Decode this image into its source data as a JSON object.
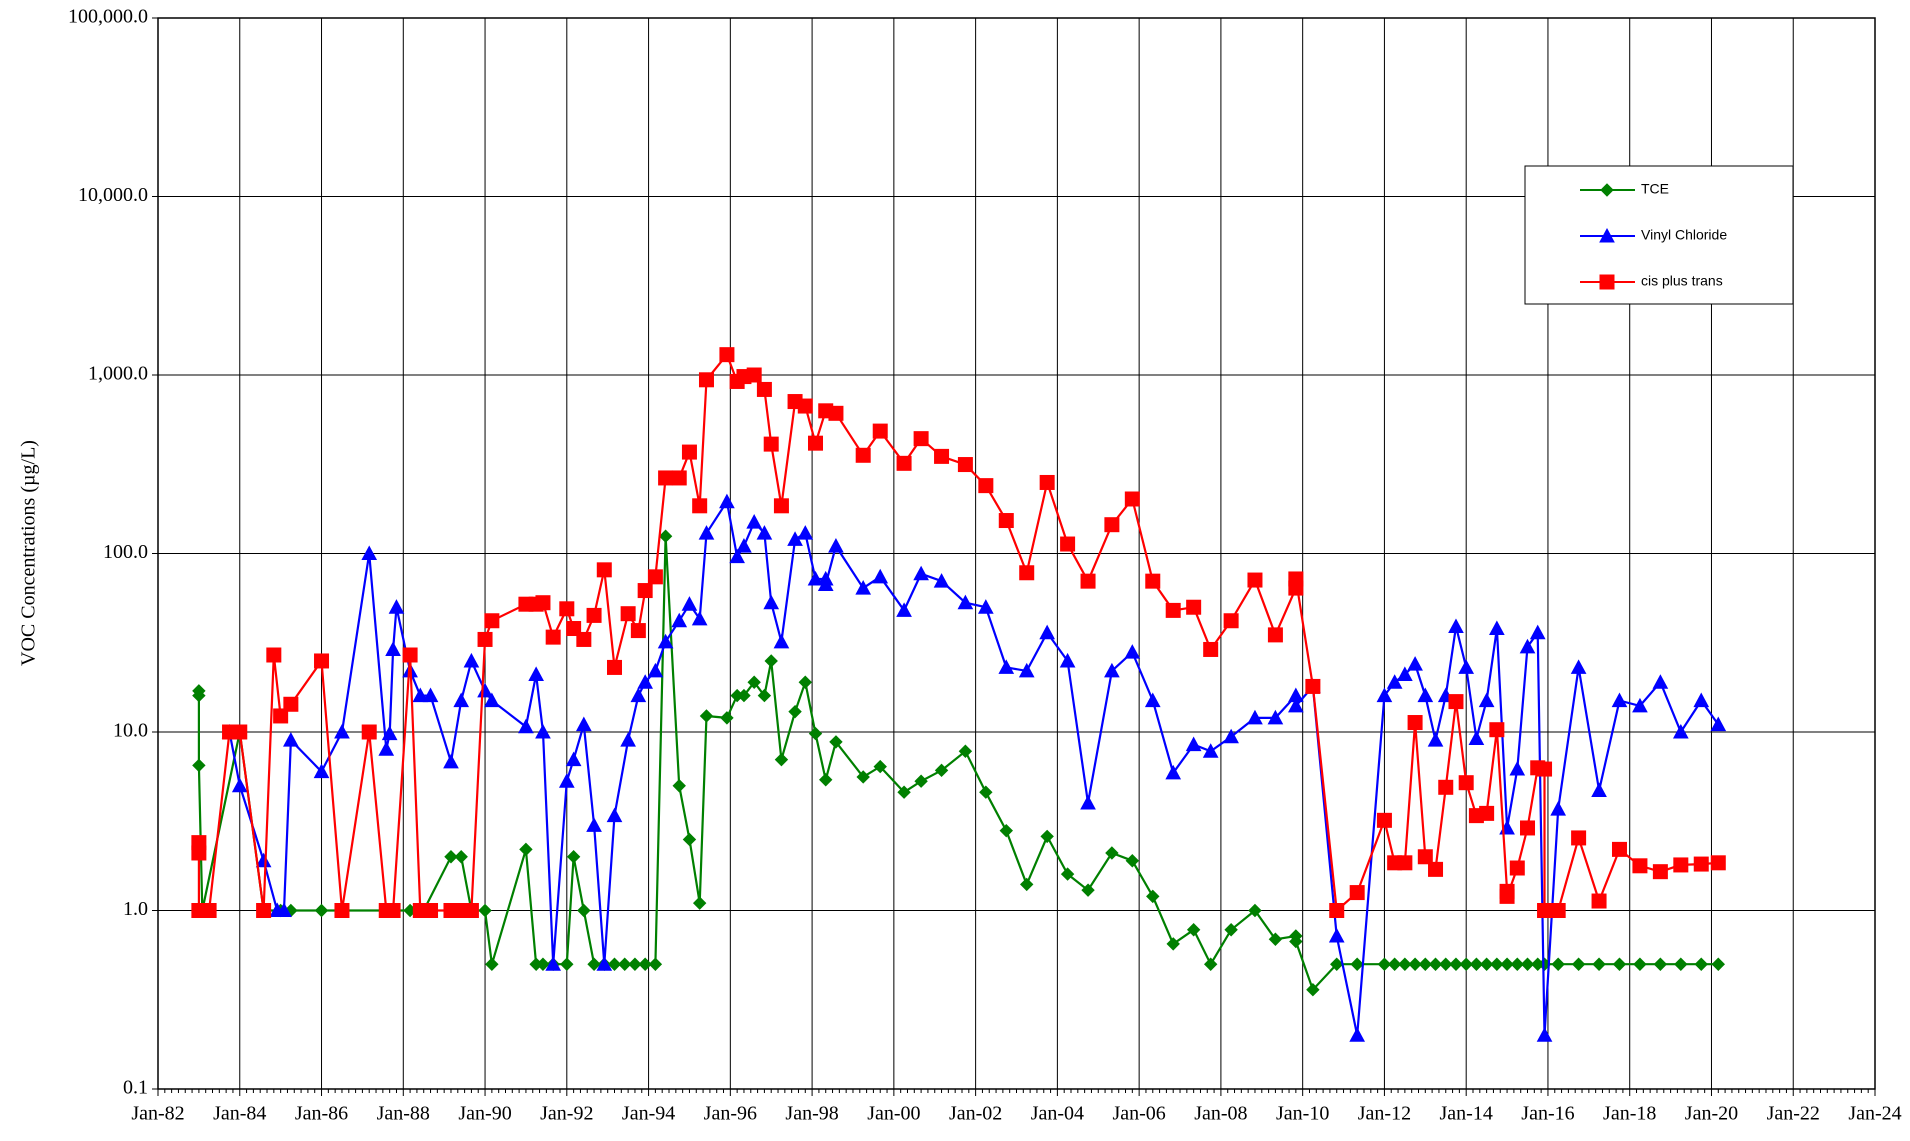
{
  "chart_data": {
    "type": "line",
    "ylabel": "VOC Concentrations (µg/L)",
    "log_y": true,
    "grid": true,
    "legend": "upper right",
    "xlim": [
      "1982-01",
      "2024-01"
    ],
    "xticks": [
      {
        "value": "1982-01",
        "label": "Jan-82"
      },
      {
        "value": "1984-01",
        "label": "Jan-84"
      },
      {
        "value": "1986-01",
        "label": "Jan-86"
      },
      {
        "value": "1988-01",
        "label": "Jan-88"
      },
      {
        "value": "1990-01",
        "label": "Jan-90"
      },
      {
        "value": "1992-01",
        "label": "Jan-92"
      },
      {
        "value": "1994-01",
        "label": "Jan-94"
      },
      {
        "value": "1996-01",
        "label": "Jan-96"
      },
      {
        "value": "1998-01",
        "label": "Jan-98"
      },
      {
        "value": "2000-01",
        "label": "Jan-00"
      },
      {
        "value": "2002-01",
        "label": "Jan-02"
      },
      {
        "value": "2004-01",
        "label": "Jan-04"
      },
      {
        "value": "2006-01",
        "label": "Jan-06"
      },
      {
        "value": "2008-01",
        "label": "Jan-08"
      },
      {
        "value": "2010-01",
        "label": "Jan-10"
      },
      {
        "value": "2012-01",
        "label": "Jan-12"
      },
      {
        "value": "2014-01",
        "label": "Jan-14"
      },
      {
        "value": "2016-01",
        "label": "Jan-16"
      },
      {
        "value": "2018-01",
        "label": "Jan-18"
      },
      {
        "value": "2020-01",
        "label": "Jan-20"
      },
      {
        "value": "2022-01",
        "label": "Jan-22"
      },
      {
        "value": "2024-01",
        "label": "Jan-24"
      }
    ],
    "ylim": [
      0.1,
      100000
    ],
    "yticks": [
      0.1,
      {
        "value": 1,
        "label": "1.0"
      },
      {
        "value": 10,
        "label": "10.0"
      },
      {
        "value": 100,
        "label": "100.0"
      },
      {
        "value": 1000,
        "label": "1,000.0"
      },
      {
        "value": 10000,
        "label": "10,000.0"
      },
      {
        "value": 100000,
        "label": "100,000.0"
      }
    ],
    "series": [
      {
        "name": "TCE",
        "color": "#008000",
        "marker": "diamond",
        "x": [
          "1983-01",
          "1983-01",
          "1983-01",
          "1983-02",
          "1984-01",
          "1984-08",
          "1985-01",
          "1985-04",
          "1986-01",
          "1986-07",
          "1987-08",
          "1987-10",
          "1988-03",
          "1988-07",
          "1989-03",
          "1989-06",
          "1989-09",
          "1990-01",
          "1990-03",
          "1991-01",
          "1991-04",
          "1991-06",
          "1991-09",
          "1992-01",
          "1992-03",
          "1992-06",
          "1992-09",
          "1992-12",
          "1993-03",
          "1993-06",
          "1993-09",
          "1993-12",
          "1994-03",
          "1994-06",
          "1994-10",
          "1995-01",
          "1995-04",
          "1995-06",
          "1995-12",
          "1996-03",
          "1996-05",
          "1996-08",
          "1996-11",
          "1997-01",
          "1997-04",
          "1997-08",
          "1997-11",
          "1998-02",
          "1998-05",
          "1998-08",
          "1999-04",
          "1999-09",
          "2000-04",
          "2000-09",
          "2001-03",
          "2001-10",
          "2002-04",
          "2002-10",
          "2003-04",
          "2003-10",
          "2004-04",
          "2004-10",
          "2005-05",
          "2005-11",
          "2006-05",
          "2006-11",
          "2007-05",
          "2007-10",
          "2008-04",
          "2008-11",
          "2009-05",
          "2009-11",
          "2009-11",
          "2010-04",
          "2010-11",
          "2011-05",
          "2012-01",
          "2012-04",
          "2012-07",
          "2012-10",
          "2013-01",
          "2013-04",
          "2013-07",
          "2013-10",
          "2014-01",
          "2014-04",
          "2014-07",
          "2014-10",
          "2015-01",
          "2015-04",
          "2015-07",
          "2015-10",
          "2015-12",
          "2016-04",
          "2016-10",
          "2017-04",
          "2017-10",
          "2018-04",
          "2018-10",
          "2019-04",
          "2019-10",
          "2020-03"
        ],
        "values": [
          17,
          16,
          6.5,
          1.0,
          10,
          1.0,
          1.0,
          1.0,
          1.0,
          1.0,
          1.0,
          1.0,
          1.0,
          1.0,
          2.0,
          2.0,
          1.0,
          1.0,
          0.5,
          2.2,
          0.5,
          0.5,
          0.5,
          0.5,
          2.0,
          1.0,
          0.5,
          0.5,
          0.5,
          0.5,
          0.5,
          0.5,
          0.5,
          125,
          5.0,
          2.5,
          1.1,
          12.3,
          12,
          16,
          16,
          19,
          16,
          25,
          7,
          13,
          19,
          9.8,
          5.4,
          8.8,
          5.6,
          6.4,
          4.6,
          5.3,
          6.1,
          7.8,
          4.6,
          2.8,
          1.4,
          2.6,
          1.6,
          1.3,
          2.1,
          1.9,
          1.2,
          0.65,
          0.78,
          0.5,
          0.78,
          1.0,
          0.69,
          0.72,
          0.67,
          0.36,
          0.5,
          0.5,
          0.5,
          0.5,
          0.5,
          0.5,
          0.5,
          0.5,
          0.5,
          0.5,
          0.5,
          0.5,
          0.5,
          0.5,
          0.5,
          0.5,
          0.5,
          0.5,
          0.5,
          0.5,
          0.5,
          0.5,
          0.5,
          0.5,
          0.5,
          0.5,
          0.5,
          0.5
        ]
      },
      {
        "name": "Vinyl Chloride",
        "color": "#0000ff",
        "marker": "triangle",
        "x": [
          "1983-10",
          "1984-01",
          "1984-08",
          "1984-12",
          "1985-02",
          "1985-04",
          "1986-01",
          "1986-07",
          "1987-03",
          "1987-08",
          "1987-09",
          "1987-10",
          "1987-11",
          "1988-03",
          "1988-06",
          "1988-09",
          "1989-03",
          "1989-06",
          "1989-09",
          "1990-01",
          "1990-03",
          "1991-01",
          "1991-04",
          "1991-06",
          "1991-09",
          "1992-01",
          "1992-03",
          "1992-06",
          "1992-09",
          "1992-12",
          "1993-03",
          "1993-07",
          "1993-10",
          "1993-12",
          "1994-03",
          "1994-06",
          "1994-10",
          "1995-01",
          "1995-04",
          "1995-06",
          "1995-12",
          "1996-03",
          "1996-05",
          "1996-08",
          "1996-11",
          "1997-01",
          "1997-04",
          "1997-08",
          "1997-11",
          "1998-02",
          "1998-05",
          "1998-05",
          "1998-08",
          "1999-04",
          "1999-09",
          "2000-04",
          "2000-09",
          "2001-03",
          "2001-10",
          "2002-04",
          "2002-10",
          "2003-04",
          "2003-10",
          "2004-04",
          "2004-10",
          "2005-05",
          "2005-11",
          "2006-05",
          "2006-11",
          "2007-05",
          "2007-10",
          "2008-04",
          "2008-11",
          "2009-05",
          "2009-11",
          "2009-11",
          "2010-04",
          "2010-11",
          "2011-05",
          "2012-01",
          "2012-04",
          "2012-07",
          "2012-10",
          "2013-01",
          "2013-04",
          "2013-07",
          "2013-10",
          "2014-01",
          "2014-04",
          "2014-07",
          "2014-10",
          "2015-01",
          "2015-04",
          "2015-07",
          "2015-10",
          "2015-12",
          "2016-04",
          "2016-10",
          "2017-04",
          "2017-10",
          "2018-04",
          "2018-10",
          "2019-04",
          "2019-10",
          "2020-03"
        ],
        "values": [
          10,
          5,
          1.9,
          1.0,
          1.0,
          9,
          6,
          10,
          100,
          8,
          9.8,
          29,
          50,
          22,
          16,
          16,
          6.8,
          15,
          25,
          17,
          15,
          10.7,
          21,
          10,
          0.5,
          5.3,
          7,
          11,
          3,
          0.5,
          3.4,
          9,
          16,
          19,
          22,
          32,
          42,
          52,
          43,
          130,
          195,
          96,
          110,
          150,
          130,
          53,
          32,
          120,
          130,
          72,
          72,
          67,
          110,
          64,
          74,
          48,
          77,
          70,
          53,
          50,
          23,
          22,
          36,
          25,
          4,
          22,
          28,
          15,
          5.9,
          8.5,
          7.8,
          9.4,
          12,
          12,
          16,
          14,
          18,
          0.72,
          0.2,
          16,
          19,
          21,
          24,
          16,
          9,
          16,
          39,
          23,
          9.2,
          15,
          38,
          2.9,
          6.2,
          30,
          36,
          0.2,
          3.7,
          23,
          4.7,
          15,
          14,
          19,
          10,
          15,
          11
        ]
      },
      {
        "name": "cis plus trans",
        "color": "#ff0000",
        "marker": "square",
        "x": [
          "1983-01",
          "1983-01",
          "1983-01",
          "1983-04",
          "1983-10",
          "1984-01",
          "1984-08",
          "1984-11",
          "1985-01",
          "1985-04",
          "1986-01",
          "1986-07",
          "1987-03",
          "1987-08",
          "1987-10",
          "1988-03",
          "1988-06",
          "1988-09",
          "1989-03",
          "1989-06",
          "1989-09",
          "1990-01",
          "1990-03",
          "1991-01",
          "1991-04",
          "1991-06",
          "1991-09",
          "1992-01",
          "1992-03",
          "1992-06",
          "1992-09",
          "1992-12",
          "1993-03",
          "1993-07",
          "1993-10",
          "1993-12",
          "1994-03",
          "1994-06",
          "1994-10",
          "1995-01",
          "1995-04",
          "1995-06",
          "1995-12",
          "1996-03",
          "1996-05",
          "1996-08",
          "1996-11",
          "1997-01",
          "1997-04",
          "1997-08",
          "1997-11",
          "1998-02",
          "1998-05",
          "1998-08",
          "1999-04",
          "1999-09",
          "2000-04",
          "2000-09",
          "2001-03",
          "2001-10",
          "2002-04",
          "2002-10",
          "2003-04",
          "2003-10",
          "2004-04",
          "2004-10",
          "2005-05",
          "2005-11",
          "2006-05",
          "2006-11",
          "2007-05",
          "2007-10",
          "2008-04",
          "2008-11",
          "2009-05",
          "2009-11",
          "2009-11",
          "2010-04",
          "2010-11",
          "2011-05",
          "2012-01",
          "2012-04",
          "2012-07",
          "2012-10",
          "2013-01",
          "2013-04",
          "2013-07",
          "2013-10",
          "2014-01",
          "2014-04",
          "2014-07",
          "2014-10",
          "2015-01",
          "2015-01",
          "2015-04",
          "2015-07",
          "2015-10",
          "2015-12",
          "2015-12",
          "2016-04",
          "2016-10",
          "2017-04",
          "2017-10",
          "2018-04",
          "2018-10",
          "2019-04",
          "2019-10",
          "2020-03"
        ],
        "values": [
          2.4,
          2.1,
          1.0,
          1.0,
          10,
          10,
          1.0,
          27,
          12.3,
          14.3,
          25,
          1.0,
          10,
          1.0,
          1.0,
          27,
          1.0,
          1.0,
          1.0,
          1.0,
          1.0,
          33,
          42,
          52,
          52,
          53,
          34,
          49,
          38,
          33,
          45,
          81,
          23,
          46,
          37,
          62,
          74,
          265,
          265,
          370,
          185,
          940,
          1300,
          920,
          980,
          1000,
          830,
          410,
          185,
          710,
          670,
          415,
          630,
          610,
          355,
          485,
          320,
          440,
          350,
          315,
          240,
          153,
          78,
          250,
          113,
          70,
          145,
          202,
          70,
          48,
          50,
          29,
          42,
          71,
          35,
          64,
          72,
          18,
          1.0,
          1.26,
          3.2,
          1.85,
          1.85,
          11.3,
          2.0,
          1.7,
          4.9,
          14.8,
          5.2,
          3.4,
          3.5,
          10.3,
          1.28,
          1.2,
          1.73,
          2.9,
          6.3,
          6.2,
          1.0,
          1.0,
          2.55,
          1.13,
          2.2,
          1.78,
          1.65,
          1.8,
          1.82,
          1.85
        ]
      }
    ]
  }
}
